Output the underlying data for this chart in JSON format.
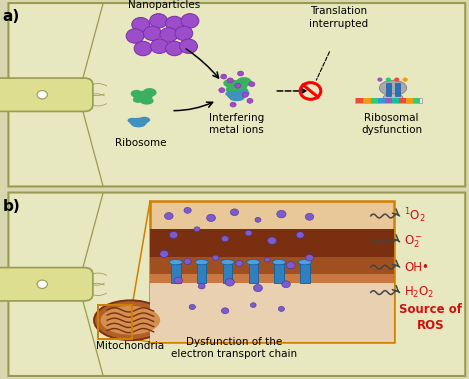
{
  "panel_bg_a": "#e8e8c0",
  "panel_bg_b": "#e8e8c0",
  "panel_border": "#9a9a50",
  "outer_bg": "#d8d8b0",
  "bacteria_fill": "#dede90",
  "bacteria_border": "#9a9a50",
  "purple_np": "#9b4dca",
  "purple_np_edge": "#7b2daa",
  "green_ribo": "#3ab060",
  "blue_ribo": "#4090c0",
  "combined_green": "#3ab060",
  "combined_blue": "#4090c0",
  "brown_outer": "#7a3010",
  "brown_mid": "#a05020",
  "brown_inner": "#c87840",
  "tan_bg": "#e8c898",
  "pink_lower": "#e8d0b0",
  "blue_protein": "#3080c0",
  "blue_protein_edge": "#1060a0",
  "purple_dot": "#7b5ccc",
  "purple_dot_edge": "#4b2c9c",
  "orange_zoom": "#d08000",
  "red_ros": "#cc1111",
  "dark_arrow": "#444444",
  "gray_ribo": "#aaaaaa",
  "gray_ribo_edge": "#888888",
  "mrna_colors": [
    "#e74c3c",
    "#f39c12",
    "#2ecc71",
    "#3498db",
    "#9b59b6",
    "#1abc9c",
    "#e74c3c",
    "#f39c12",
    "#2ecc71"
  ],
  "title_a": "a)",
  "title_b": "b)",
  "label_nanoparticles": "Nanoparticles",
  "label_ribosome": "Ribosome",
  "label_interfering": "Interfering\nmetal ions",
  "label_translation": "Translation\ninterrupted",
  "label_ribosomal": "Ribosomal\ndysfunction",
  "label_mitochondria": "Mitochondria",
  "label_dysfunction": "Dysfunction of the\nelectron transport chain",
  "label_source": "Source of\nROS"
}
